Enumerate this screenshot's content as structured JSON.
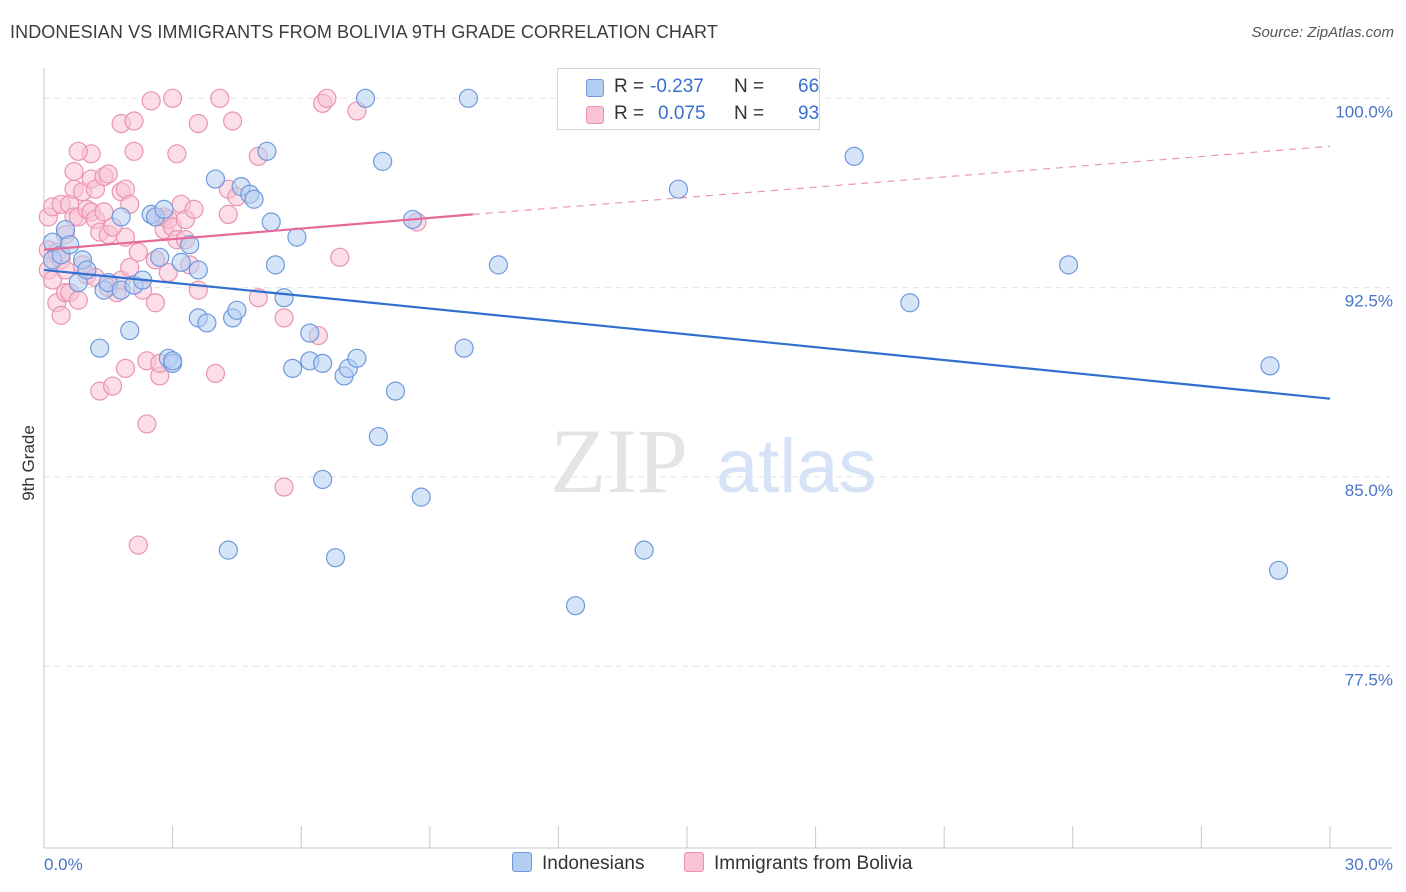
{
  "header": {
    "title": "INDONESIAN VS IMMIGRANTS FROM BOLIVIA 9TH GRADE CORRELATION CHART",
    "source": "Source: ZipAtlas.com"
  },
  "watermark": {
    "zip": "ZIP",
    "atlas": "atlas"
  },
  "legend": {
    "r_label": "R =",
    "n_label": "N =",
    "rows": [
      {
        "r": "-0.237",
        "n": "66",
        "color": "#4a7fd4"
      },
      {
        "r": "0.075",
        "n": "93",
        "color": "#e76a96"
      }
    ]
  },
  "bottom_legend": {
    "series1": "Indonesians",
    "series2": "Immigrants from Bolivia"
  },
  "colors": {
    "blue_fill": "#b4cdf3",
    "blue_stroke": "#6f99dd",
    "blue_line": "#2f6fcf",
    "pink_fill": "#f8c3d4",
    "pink_stroke": "#ea94b1",
    "pink_line": "#e46a97"
  },
  "chart_data": {
    "type": "scatter",
    "title": "INDONESIAN VS IMMIGRANTS FROM BOLIVIA 9TH GRADE CORRELATION CHART",
    "xlabel": "",
    "ylabel": "9th Grade",
    "xlim": [
      0,
      30
    ],
    "ylim": [
      70.3,
      101.2
    ],
    "x_tick_labels": [
      "0.0%",
      "30.0%"
    ],
    "y_tick_values": [
      100.0,
      92.5,
      85.0,
      77.5
    ],
    "y_tick_labels": [
      "100.0%",
      "92.5%",
      "85.0%",
      "77.5%"
    ],
    "grid": true,
    "legend_position": "top-center",
    "series": [
      {
        "name": "Indonesians",
        "r": -0.237,
        "n": 66,
        "trend": {
          "x": [
            0,
            30
          ],
          "y": [
            93.2,
            88.1
          ]
        },
        "points": [
          [
            0.2,
            93.6
          ],
          [
            0.2,
            94.3
          ],
          [
            0.4,
            93.8
          ],
          [
            0.5,
            94.8
          ],
          [
            0.6,
            94.2
          ],
          [
            0.8,
            92.7
          ],
          [
            0.9,
            93.6
          ],
          [
            1.3,
            90.1
          ],
          [
            1.4,
            92.4
          ],
          [
            1.5,
            92.7
          ],
          [
            1.8,
            95.3
          ],
          [
            1.8,
            92.4
          ],
          [
            2.0,
            90.8
          ],
          [
            2.1,
            92.6
          ],
          [
            2.3,
            92.8
          ],
          [
            2.5,
            95.4
          ],
          [
            2.6,
            95.3
          ],
          [
            2.7,
            93.7
          ],
          [
            2.8,
            95.6
          ],
          [
            2.9,
            89.7
          ],
          [
            3.0,
            89.5
          ],
          [
            3.2,
            93.5
          ],
          [
            3.4,
            94.2
          ],
          [
            3.6,
            93.2
          ],
          [
            3.6,
            91.3
          ],
          [
            3.8,
            91.1
          ],
          [
            4.0,
            96.8
          ],
          [
            4.3,
            82.1
          ],
          [
            4.4,
            91.3
          ],
          [
            4.5,
            91.6
          ],
          [
            4.6,
            96.5
          ],
          [
            4.8,
            96.2
          ],
          [
            4.9,
            96.0
          ],
          [
            5.2,
            97.9
          ],
          [
            5.3,
            95.1
          ],
          [
            5.4,
            93.4
          ],
          [
            5.6,
            92.1
          ],
          [
            5.8,
            89.3
          ],
          [
            5.9,
            94.5
          ],
          [
            6.2,
            89.6
          ],
          [
            6.2,
            90.7
          ],
          [
            6.5,
            84.9
          ],
          [
            6.5,
            89.5
          ],
          [
            6.8,
            81.8
          ],
          [
            7.0,
            89.0
          ],
          [
            7.1,
            89.3
          ],
          [
            7.3,
            89.7
          ],
          [
            7.5,
            100.0
          ],
          [
            7.8,
            86.6
          ],
          [
            7.9,
            97.5
          ],
          [
            8.2,
            88.4
          ],
          [
            8.6,
            95.2
          ],
          [
            8.8,
            84.2
          ],
          [
            9.8,
            90.1
          ],
          [
            9.9,
            100.0
          ],
          [
            10.6,
            93.4
          ],
          [
            12.4,
            79.9
          ],
          [
            14.0,
            82.1
          ],
          [
            14.8,
            96.4
          ],
          [
            18.9,
            97.7
          ],
          [
            20.2,
            91.9
          ],
          [
            23.9,
            93.4
          ],
          [
            28.6,
            89.4
          ],
          [
            28.8,
            81.3
          ],
          [
            1.0,
            93.2
          ],
          [
            3.0,
            89.6
          ]
        ]
      },
      {
        "name": "Immigrants from Bolivia",
        "r": 0.075,
        "n": 93,
        "trend": {
          "x": [
            0,
            10
          ],
          "y": [
            94.0,
            95.4
          ]
        },
        "trend_ext": {
          "x": [
            10,
            30
          ],
          "y": [
            95.4,
            98.1
          ]
        },
        "points": [
          [
            0.1,
            95.3
          ],
          [
            0.1,
            94.0
          ],
          [
            0.1,
            93.2
          ],
          [
            0.2,
            92.8
          ],
          [
            0.2,
            95.7
          ],
          [
            0.3,
            91.9
          ],
          [
            0.3,
            93.9
          ],
          [
            0.4,
            95.8
          ],
          [
            0.4,
            91.4
          ],
          [
            0.4,
            93.6
          ],
          [
            0.5,
            94.6
          ],
          [
            0.5,
            93.2
          ],
          [
            0.5,
            92.3
          ],
          [
            0.6,
            95.8
          ],
          [
            0.6,
            92.3
          ],
          [
            0.7,
            96.4
          ],
          [
            0.7,
            95.3
          ],
          [
            0.7,
            97.1
          ],
          [
            0.8,
            95.3
          ],
          [
            0.8,
            92.0
          ],
          [
            0.9,
            96.3
          ],
          [
            0.9,
            93.4
          ],
          [
            1.0,
            95.6
          ],
          [
            1.0,
            93.0
          ],
          [
            1.1,
            96.8
          ],
          [
            1.1,
            95.5
          ],
          [
            1.1,
            97.8
          ],
          [
            1.2,
            96.4
          ],
          [
            1.2,
            95.2
          ],
          [
            1.2,
            92.9
          ],
          [
            1.3,
            94.7
          ],
          [
            1.3,
            88.4
          ],
          [
            1.4,
            96.9
          ],
          [
            1.4,
            95.5
          ],
          [
            1.5,
            97.0
          ],
          [
            1.5,
            94.6
          ],
          [
            1.5,
            92.5
          ],
          [
            1.6,
            88.6
          ],
          [
            1.7,
            92.3
          ],
          [
            1.8,
            96.3
          ],
          [
            1.8,
            99.0
          ],
          [
            1.8,
            92.8
          ],
          [
            1.9,
            96.4
          ],
          [
            1.9,
            89.3
          ],
          [
            1.9,
            94.5
          ],
          [
            2.0,
            95.8
          ],
          [
            2.0,
            93.3
          ],
          [
            2.1,
            97.9
          ],
          [
            2.1,
            99.1
          ],
          [
            2.2,
            82.3
          ],
          [
            2.3,
            92.4
          ],
          [
            2.4,
            87.1
          ],
          [
            2.4,
            89.6
          ],
          [
            2.5,
            99.9
          ],
          [
            2.6,
            93.6
          ],
          [
            2.6,
            95.3
          ],
          [
            2.6,
            91.9
          ],
          [
            2.7,
            89.0
          ],
          [
            2.7,
            89.5
          ],
          [
            2.8,
            94.8
          ],
          [
            2.8,
            95.3
          ],
          [
            2.9,
            95.2
          ],
          [
            2.9,
            93.1
          ],
          [
            3.0,
            100.0
          ],
          [
            3.0,
            94.9
          ],
          [
            3.1,
            97.8
          ],
          [
            3.1,
            94.4
          ],
          [
            3.2,
            95.8
          ],
          [
            3.3,
            95.2
          ],
          [
            3.3,
            94.4
          ],
          [
            3.5,
            95.6
          ],
          [
            3.6,
            99.0
          ],
          [
            3.6,
            92.4
          ],
          [
            4.0,
            89.1
          ],
          [
            4.1,
            100.0
          ],
          [
            4.3,
            96.4
          ],
          [
            4.3,
            95.4
          ],
          [
            4.4,
            99.1
          ],
          [
            4.5,
            96.1
          ],
          [
            5.0,
            92.1
          ],
          [
            5.0,
            97.7
          ],
          [
            5.6,
            91.3
          ],
          [
            5.6,
            84.6
          ],
          [
            6.4,
            90.6
          ],
          [
            6.5,
            99.8
          ],
          [
            6.6,
            100.0
          ],
          [
            6.9,
            93.7
          ],
          [
            7.3,
            99.5
          ],
          [
            8.7,
            95.1
          ],
          [
            3.4,
            93.4
          ],
          [
            0.8,
            97.9
          ],
          [
            1.6,
            94.9
          ],
          [
            2.2,
            93.9
          ]
        ]
      }
    ]
  }
}
